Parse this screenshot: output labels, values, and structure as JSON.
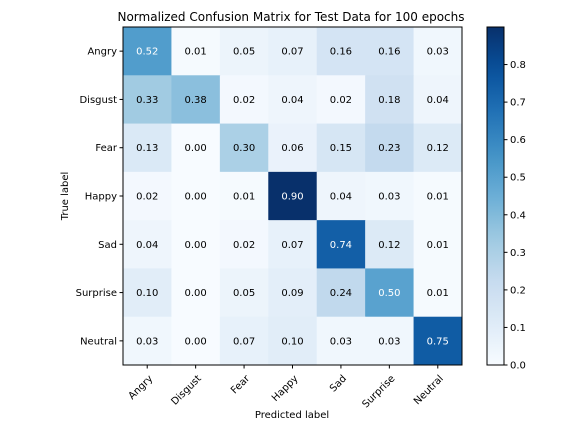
{
  "chart_data": {
    "type": "heatmap",
    "title": "Normalized Confusion Matrix for Test Data for 100 epochs",
    "xlabel": "Predicted label",
    "ylabel": "True label",
    "x_categories": [
      "Angry",
      "Disgust",
      "Fear",
      "Happy",
      "Sad",
      "Surprise",
      "Neutral"
    ],
    "y_categories": [
      "Angry",
      "Disgust",
      "Fear",
      "Happy",
      "Sad",
      "Surprise",
      "Neutral"
    ],
    "values": [
      [
        0.52,
        0.01,
        0.05,
        0.07,
        0.16,
        0.16,
        0.03
      ],
      [
        0.33,
        0.38,
        0.02,
        0.04,
        0.02,
        0.18,
        0.04
      ],
      [
        0.13,
        0.0,
        0.3,
        0.06,
        0.15,
        0.23,
        0.12
      ],
      [
        0.02,
        0.0,
        0.01,
        0.9,
        0.04,
        0.03,
        0.01
      ],
      [
        0.04,
        0.0,
        0.02,
        0.07,
        0.74,
        0.12,
        0.01
      ],
      [
        0.1,
        0.0,
        0.05,
        0.09,
        0.24,
        0.5,
        0.01
      ],
      [
        0.03,
        0.0,
        0.07,
        0.1,
        0.03,
        0.03,
        0.75
      ]
    ],
    "value_range": [
      0.0,
      0.9
    ],
    "colormap": "Blues",
    "colorbar_ticks": [
      "0.0",
      "0.1",
      "0.2",
      "0.3",
      "0.4",
      "0.5",
      "0.6",
      "0.7",
      "0.8"
    ],
    "text_color_dark": "#000000",
    "text_color_light": "#ffffff",
    "grid": false
  }
}
